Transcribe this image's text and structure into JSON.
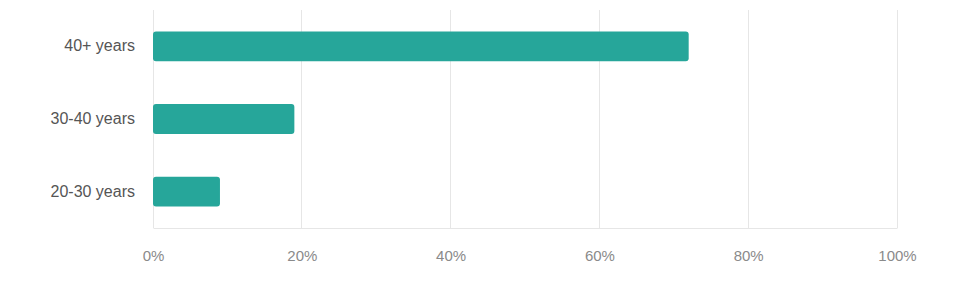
{
  "chart_data": {
    "type": "bar",
    "orientation": "horizontal",
    "categories": [
      "40+ years",
      "30-40 years",
      "20-30 years"
    ],
    "values": [
      72,
      19,
      9
    ],
    "color": "#26a69a",
    "xlim": [
      0,
      100
    ],
    "xticks": [
      {
        "value": 0,
        "label": "0%"
      },
      {
        "value": 20,
        "label": "20%"
      },
      {
        "value": 40,
        "label": "40%"
      },
      {
        "value": 60,
        "label": "60%"
      },
      {
        "value": 80,
        "label": "80%"
      },
      {
        "value": 100,
        "label": "100%"
      }
    ],
    "grid": true
  }
}
